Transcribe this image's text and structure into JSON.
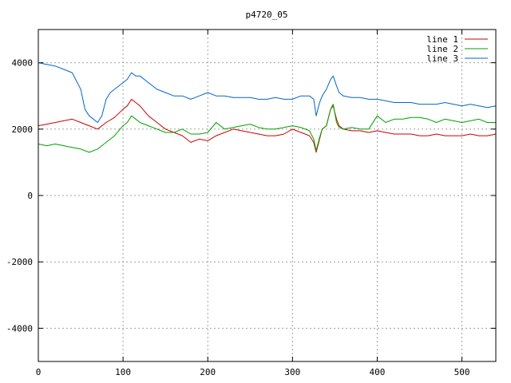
{
  "chart_data": {
    "type": "line",
    "title": "p4720_05",
    "xlabel": "",
    "ylabel": "",
    "xlim": [
      0,
      540
    ],
    "ylim": [
      -5000,
      5000
    ],
    "xticks": [
      0,
      100,
      200,
      300,
      400,
      500
    ],
    "yticks": [
      -4000,
      -2000,
      0,
      2000,
      4000
    ],
    "xtick_labels": [
      "0",
      "100",
      "200",
      "300",
      "400",
      "500"
    ],
    "ytick_labels": [
      "-4000",
      "-2000",
      "0",
      "2000",
      "4000"
    ],
    "grid": true,
    "legend_position": "top-right",
    "series": [
      {
        "name": "line 1",
        "color": "#cc0000",
        "x": [
          0,
          10,
          20,
          30,
          40,
          50,
          60,
          70,
          80,
          90,
          100,
          105,
          110,
          115,
          120,
          130,
          140,
          150,
          160,
          170,
          180,
          190,
          200,
          210,
          220,
          230,
          240,
          250,
          260,
          270,
          280,
          290,
          300,
          310,
          320,
          325,
          328,
          332,
          335,
          340,
          345,
          348,
          352,
          355,
          360,
          370,
          380,
          390,
          400,
          410,
          420,
          430,
          440,
          450,
          460,
          470,
          480,
          490,
          500,
          510,
          520,
          530,
          540
        ],
        "y": [
          2100,
          2150,
          2200,
          2250,
          2300,
          2200,
          2100,
          2000,
          2200,
          2350,
          2600,
          2700,
          2900,
          2800,
          2700,
          2400,
          2200,
          2000,
          1900,
          1800,
          1600,
          1700,
          1650,
          1800,
          1900,
          2000,
          1950,
          1900,
          1850,
          1800,
          1800,
          1850,
          2000,
          1900,
          1800,
          1600,
          1300,
          1700,
          2000,
          2100,
          2600,
          2700,
          2300,
          2100,
          2000,
          1950,
          1950,
          1900,
          1950,
          1900,
          1850,
          1850,
          1850,
          1800,
          1800,
          1850,
          1800,
          1800,
          1800,
          1850,
          1800,
          1800,
          1850
        ]
      },
      {
        "name": "line 2",
        "color": "#00a000",
        "x": [
          0,
          10,
          20,
          30,
          40,
          50,
          60,
          70,
          80,
          90,
          100,
          105,
          110,
          115,
          120,
          130,
          140,
          150,
          160,
          170,
          180,
          190,
          200,
          210,
          220,
          230,
          240,
          250,
          260,
          270,
          280,
          290,
          300,
          310,
          320,
          325,
          328,
          332,
          335,
          340,
          345,
          348,
          352,
          355,
          360,
          370,
          380,
          390,
          400,
          410,
          420,
          430,
          440,
          450,
          460,
          470,
          480,
          490,
          500,
          510,
          520,
          530,
          540
        ],
        "y": [
          1550,
          1500,
          1550,
          1500,
          1450,
          1400,
          1300,
          1400,
          1600,
          1800,
          2100,
          2200,
          2400,
          2300,
          2200,
          2100,
          2000,
          1900,
          1900,
          2000,
          1850,
          1850,
          1900,
          2200,
          2000,
          2050,
          2100,
          2150,
          2050,
          2000,
          2000,
          2050,
          2100,
          2050,
          1950,
          1700,
          1350,
          1750,
          2000,
          2100,
          2600,
          2750,
          2200,
          2050,
          2000,
          2050,
          2000,
          2000,
          2400,
          2200,
          2300,
          2300,
          2350,
          2350,
          2300,
          2200,
          2300,
          2250,
          2200,
          2250,
          2300,
          2200,
          2200
        ]
      },
      {
        "name": "line 3",
        "color": "#0066cc",
        "x": [
          0,
          10,
          20,
          30,
          40,
          50,
          55,
          60,
          65,
          70,
          75,
          80,
          85,
          90,
          100,
          105,
          110,
          115,
          120,
          130,
          140,
          150,
          160,
          170,
          180,
          190,
          200,
          210,
          220,
          230,
          240,
          250,
          260,
          270,
          280,
          290,
          300,
          310,
          320,
          325,
          328,
          332,
          335,
          340,
          345,
          348,
          352,
          355,
          360,
          370,
          380,
          390,
          400,
          410,
          420,
          430,
          440,
          450,
          460,
          470,
          480,
          490,
          500,
          510,
          520,
          530,
          540
        ],
        "y": [
          4000,
          3950,
          3900,
          3800,
          3700,
          3200,
          2600,
          2400,
          2300,
          2200,
          2400,
          2900,
          3100,
          3200,
          3400,
          3500,
          3700,
          3600,
          3600,
          3400,
          3200,
          3100,
          3000,
          3000,
          2900,
          3000,
          3100,
          3000,
          3000,
          2950,
          2950,
          2950,
          2900,
          2900,
          2950,
          2900,
          2900,
          3000,
          3000,
          2900,
          2400,
          2800,
          3000,
          3200,
          3500,
          3600,
          3300,
          3100,
          3000,
          2950,
          2950,
          2900,
          2900,
          2850,
          2800,
          2800,
          2800,
          2750,
          2750,
          2750,
          2800,
          2750,
          2700,
          2750,
          2700,
          2650,
          2700
        ]
      }
    ]
  }
}
